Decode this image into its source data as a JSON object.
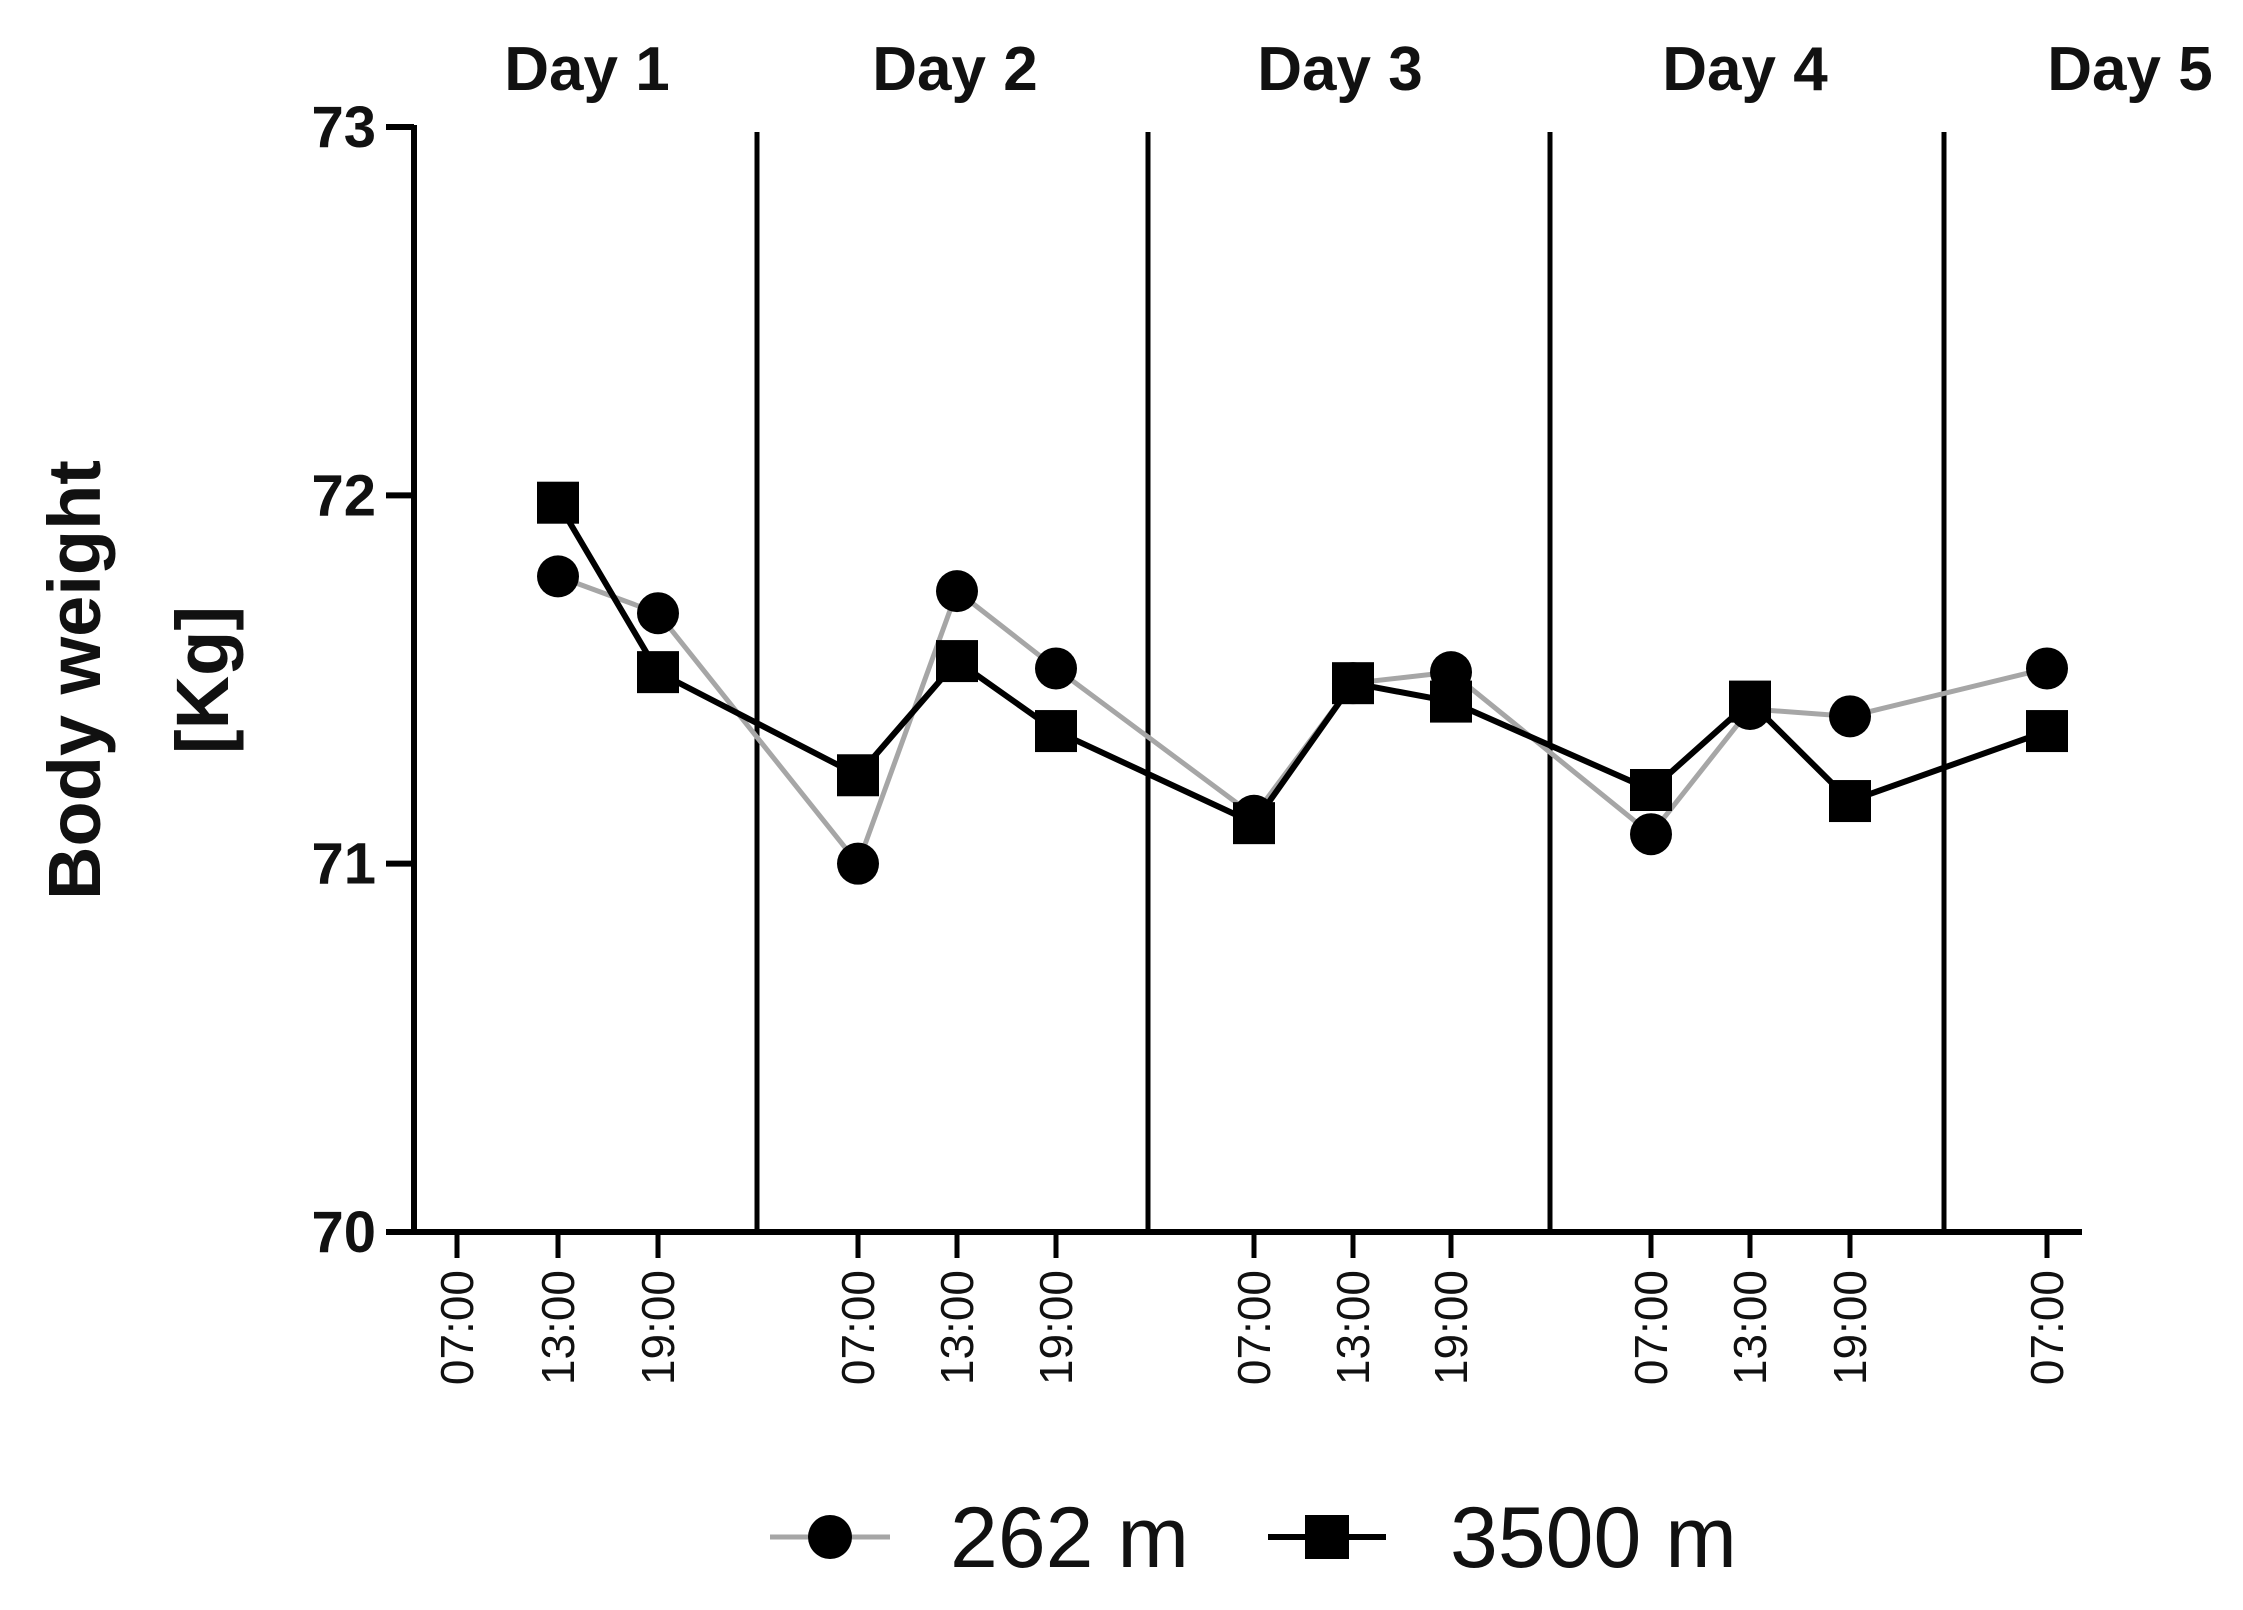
{
  "chart_data": {
    "type": "line",
    "title": "",
    "xlabel": "",
    "ylabel": "Body weight [Kg]",
    "ylabel_lines": [
      "Body weight",
      "[Kg]"
    ],
    "ylim": [
      70,
      73
    ],
    "yticks": [
      "70",
      "71",
      "72",
      "73"
    ],
    "grid": false,
    "legend_position": "bottom-center",
    "days": [
      "Day 1",
      "Day 2",
      "Day 3",
      "Day 4",
      "Day 5"
    ],
    "x": [
      "Day 1 07:00",
      "Day 1 13:00",
      "Day 1 19:00",
      "Day 2 07:00",
      "Day 2 13:00",
      "Day 2 19:00",
      "Day 3 07:00",
      "Day 3 13:00",
      "Day 3 19:00",
      "Day 4 07:00",
      "Day 4 13:00",
      "Day 4 19:00",
      "Day 5 07:00"
    ],
    "x_tick_labels": [
      "07:00",
      "13:00",
      "19:00",
      "07:00",
      "13:00",
      "19:00",
      "07:00",
      "13:00",
      "19:00",
      "07:00",
      "13:00",
      "19:00",
      "07:00"
    ],
    "series": [
      {
        "name": "262 m",
        "marker": "circle",
        "line_color": "#a6a6a6",
        "marker_color": "#000000",
        "values": [
          null,
          71.78,
          71.68,
          71.0,
          71.74,
          71.53,
          71.13,
          71.49,
          71.52,
          71.08,
          71.42,
          71.4,
          71.53
        ]
      },
      {
        "name": "3500 m",
        "marker": "square",
        "line_color": "#000000",
        "marker_color": "#000000",
        "values": [
          null,
          71.98,
          71.52,
          71.24,
          71.55,
          71.36,
          71.11,
          71.49,
          71.44,
          71.2,
          71.44,
          71.17,
          71.36
        ]
      }
    ]
  }
}
